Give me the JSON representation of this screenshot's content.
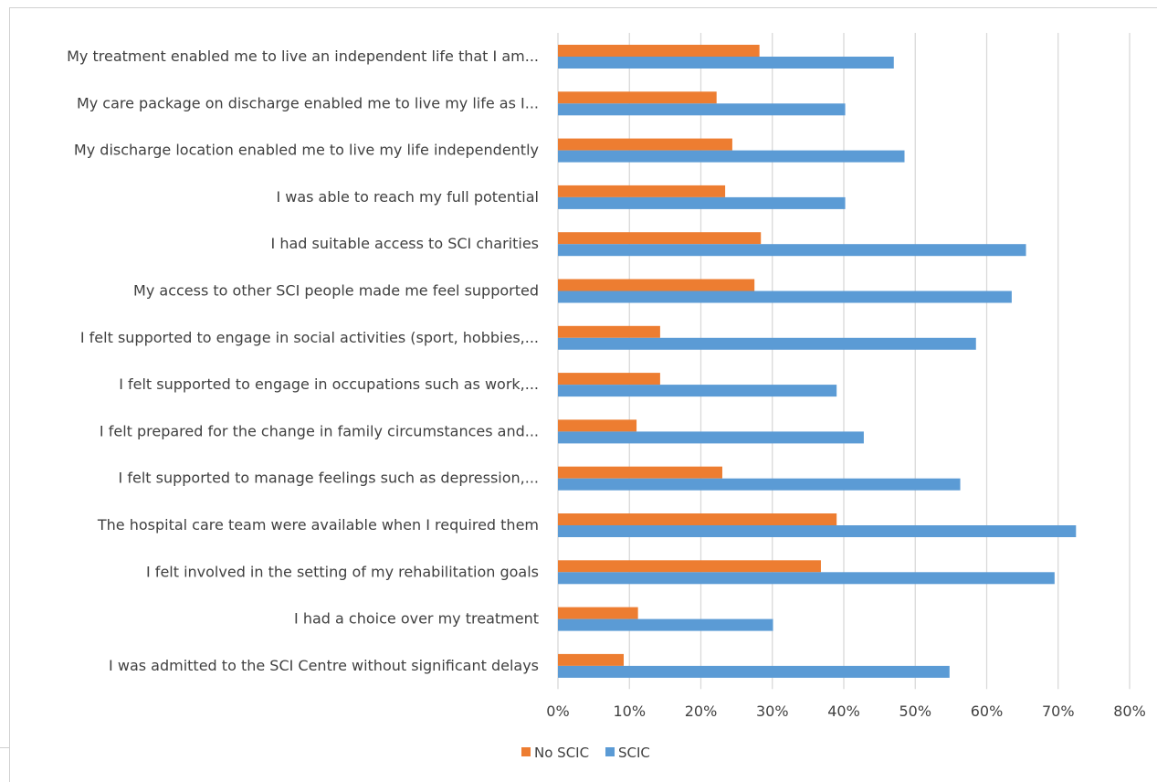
{
  "chart_data": {
    "type": "bar",
    "orientation": "horizontal",
    "categories": [
      "My treatment enabled me to live an independent life that I am...",
      "My care package on discharge enabled me to live my life as I...",
      "My discharge location enabled me to live my life independently",
      "I was able to reach my full potential",
      "I had suitable access to SCI charities",
      "My access to other SCI people made me feel supported",
      "I felt supported to engage in social activities (sport, hobbies,...",
      "I felt supported to engage in occupations such as work,...",
      "I felt prepared for the change in family circumstances and...",
      "I felt supported to manage feelings such as depression,...",
      "The hospital care team were available when I required them",
      "I felt involved in the setting of my rehabilitation goals",
      "I had a choice over my treatment",
      "I was admitted to the SCI Centre without significant delays"
    ],
    "series": [
      {
        "name": "No SCIC",
        "color": "#ED7D31",
        "values": [
          28.2,
          22.2,
          24.4,
          23.4,
          28.4,
          27.5,
          14.3,
          14.3,
          11.0,
          23.0,
          39.0,
          36.8,
          11.2,
          9.2
        ]
      },
      {
        "name": "SCIC",
        "color": "#5B9BD5",
        "values": [
          47.0,
          40.2,
          48.5,
          40.2,
          65.5,
          63.5,
          58.5,
          39.0,
          42.8,
          56.3,
          72.5,
          69.5,
          30.1,
          54.8
        ]
      }
    ],
    "xlim": [
      0,
      80
    ],
    "xticks": [
      0,
      10,
      20,
      30,
      40,
      50,
      60,
      70,
      80
    ],
    "xtick_labels": [
      "0%",
      "10%",
      "20%",
      "30%",
      "40%",
      "50%",
      "60%",
      "70%",
      "80%"
    ],
    "grid": true,
    "legend_position": "bottom"
  }
}
